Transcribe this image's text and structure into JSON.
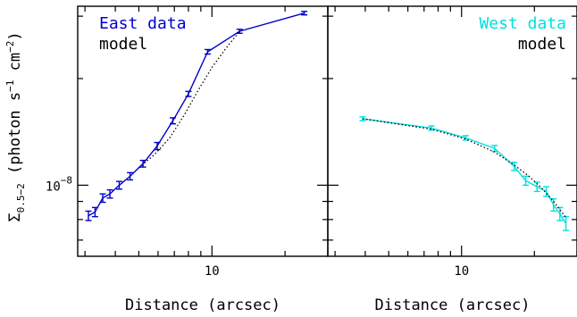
{
  "chart_data": [
    {
      "type": "line",
      "panel": "left",
      "xscale": "log",
      "yscale": "log",
      "xlim": [
        2.8,
        30
      ],
      "ylim": [
        6.3e-09,
        3.2e-08
      ],
      "xlabel": "Distance (arcsec)",
      "ylabel": "Σ0.5−2 (photon s−1 cm−2)",
      "ylabel_parts": {
        "symbol": "Σ",
        "sub": "0.5−2",
        "unit_open": " (photon s",
        "exp1": "−1",
        "unit_mid": " cm",
        "exp2": "−2",
        "unit_close": ")"
      },
      "xticks": [
        {
          "value": 10,
          "label": "10"
        }
      ],
      "yticks": [
        {
          "value": 1e-08,
          "base": "10",
          "exp": "−8"
        }
      ],
      "legend": {
        "placement": "top-left",
        "entries": [
          {
            "label": "East data",
            "color": "#0000cc"
          },
          {
            "label": "model",
            "color": "#000000"
          }
        ]
      },
      "series": [
        {
          "name": "East data",
          "style": "errorbar-line",
          "color": "#0000cc",
          "x": [
            3.1,
            3.3,
            3.55,
            3.8,
            4.15,
            4.6,
            5.2,
            5.95,
            6.9,
            8.0,
            9.6,
            13.0,
            24.0
          ],
          "y": [
            8.2e-09,
            8.4e-09,
            9.2e-09,
            9.45e-09,
            1e-08,
            1.06e-08,
            1.15e-08,
            1.29e-08,
            1.52e-08,
            1.81e-08,
            2.38e-08,
            2.72e-08,
            3.06e-08
          ],
          "err": [
            2.5e-10,
            2.5e-10,
            2.5e-10,
            2.5e-10,
            2.5e-10,
            2.5e-10,
            2.5e-10,
            3e-10,
            3e-10,
            3e-10,
            3.5e-10,
            3.5e-10,
            3.5e-10
          ]
        },
        {
          "name": "model",
          "style": "dotted",
          "color": "#000000",
          "x": [
            5.0,
            5.8,
            6.7,
            7.7,
            8.8,
            10.0,
            11.5,
            13.0
          ],
          "y": [
            1.12e-08,
            1.22e-08,
            1.36e-08,
            1.58e-08,
            1.86e-08,
            2.15e-08,
            2.45e-08,
            2.72e-08
          ]
        }
      ]
    },
    {
      "type": "line",
      "panel": "right",
      "xscale": "log",
      "yscale": "log",
      "xlim": [
        2.8,
        30
      ],
      "ylim": [
        6.3e-09,
        3.2e-08
      ],
      "xlabel": "Distance (arcsec)",
      "xticks": [
        {
          "value": 10,
          "label": "10"
        }
      ],
      "legend": {
        "placement": "top-right",
        "entries": [
          {
            "label": "West data",
            "color": "#00e0e0"
          },
          {
            "label": "model",
            "color": "#000000"
          }
        ]
      },
      "series": [
        {
          "name": "West data",
          "style": "errorbar-line",
          "color": "#00e0e0",
          "x": [
            3.9,
            7.5,
            10.4,
            13.7,
            16.5,
            18.4,
            20.5,
            22.4,
            24.0,
            25.5,
            27.0
          ],
          "y": [
            1.54e-08,
            1.45e-08,
            1.36e-08,
            1.27e-08,
            1.13e-08,
            1.03e-08,
            9.9e-09,
            9.6e-09,
            8.8e-09,
            8.3e-09,
            7.8e-09
          ],
          "err": [
            2e-10,
            2e-10,
            2e-10,
            2.5e-10,
            3e-10,
            3e-10,
            3e-10,
            3e-10,
            3.5e-10,
            3.5e-10,
            3.5e-10
          ]
        },
        {
          "name": "model",
          "style": "dotted",
          "color": "#000000",
          "x": [
            3.9,
            7.5,
            10.4,
            13.7,
            16.5,
            19.0,
            21.5,
            24.0,
            27.0
          ],
          "y": [
            1.54e-08,
            1.44e-08,
            1.35e-08,
            1.24e-08,
            1.14e-08,
            1.06e-08,
            9.8e-09,
            9e-09,
            8.1e-09
          ]
        }
      ]
    }
  ]
}
